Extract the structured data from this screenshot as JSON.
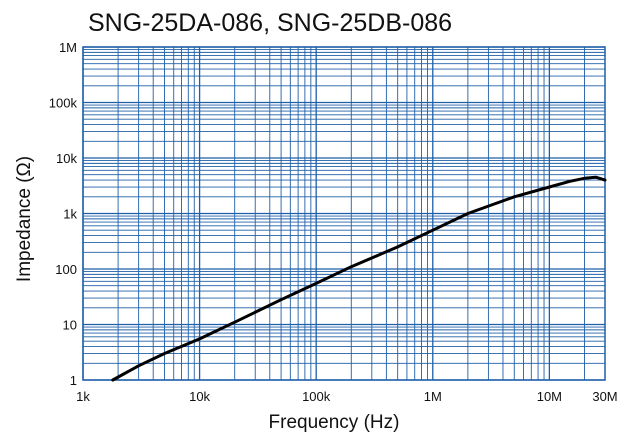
{
  "chart_data": {
    "type": "line",
    "title": "SNG-25DA-086, SNG-25DB-086",
    "xlabel": "Frequency (Hz)",
    "ylabel": "Impedance (Ω)",
    "x_scale": "log",
    "y_scale": "log",
    "xlim": [
      1000,
      30000000
    ],
    "ylim": [
      1,
      1000000
    ],
    "grid": true,
    "x_ticks": [
      {
        "value": 1000,
        "label": "1k"
      },
      {
        "value": 10000,
        "label": "10k"
      },
      {
        "value": 100000,
        "label": "100k"
      },
      {
        "value": 1000000,
        "label": "1M"
      },
      {
        "value": 10000000,
        "label": "10M"
      },
      {
        "value": 30000000,
        "label": "30M"
      }
    ],
    "y_ticks": [
      {
        "value": 1,
        "label": "1"
      },
      {
        "value": 10,
        "label": "10"
      },
      {
        "value": 100,
        "label": "100"
      },
      {
        "value": 1000,
        "label": "1k"
      },
      {
        "value": 10000,
        "label": "10k"
      },
      {
        "value": 100000,
        "label": "100k"
      },
      {
        "value": 1000000,
        "label": "1M"
      }
    ],
    "series": [
      {
        "color": "#000000",
        "x": [
          1800,
          3000,
          5000,
          10000,
          20000,
          50000,
          100000,
          200000,
          500000,
          1000000,
          2000000,
          5000000,
          10000000,
          15000000,
          20000000,
          25000000,
          30000000
        ],
        "y": [
          1,
          1.8,
          3,
          5.5,
          11,
          28,
          55,
          110,
          250,
          500,
          1000,
          2000,
          3000,
          3800,
          4300,
          4500,
          4000
        ]
      }
    ]
  },
  "colors": {
    "grid": "#1f5fa8",
    "curve": "#000000",
    "text": "#111111"
  }
}
